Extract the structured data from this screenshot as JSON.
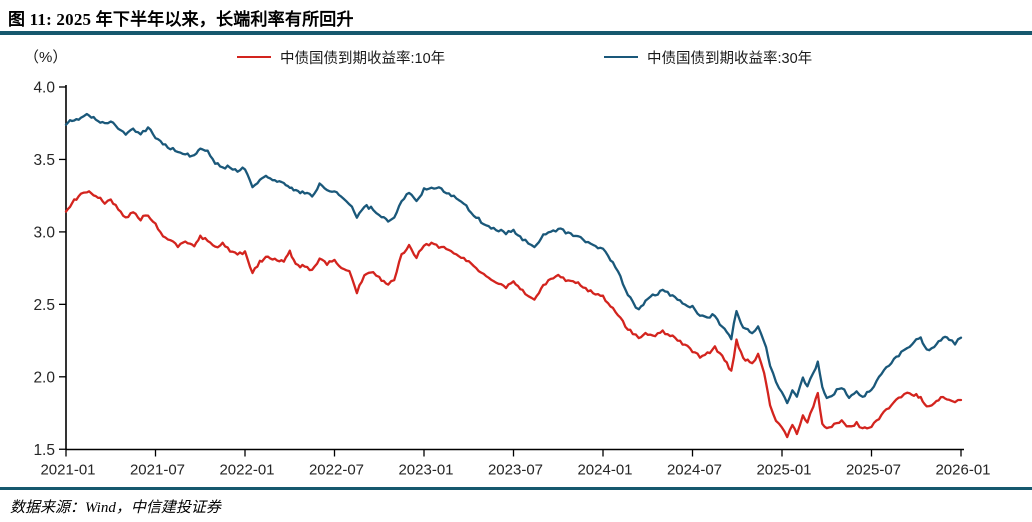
{
  "figure": {
    "title": "图 11: 2025 年下半年以来，长端利率有所回升",
    "unit_label": "（%）",
    "source_note": "数据来源：Wind，中信建投证券"
  },
  "colors": {
    "rule": "#16586E",
    "axis": "#000000",
    "tick_text": "#262626",
    "series_10y": "#D3241E",
    "series_30y": "#1A587A"
  },
  "chart_data": {
    "type": "line",
    "title": "图 11: 2025 年下半年以来，长端利率有所回升",
    "ylabel": "（%）",
    "ylim": [
      1.5,
      4.0
    ],
    "yticks": [
      4.0,
      3.5,
      3.0,
      2.5,
      2.0,
      1.5
    ],
    "xticks": [
      "2021-01",
      "2021-07",
      "2022-01",
      "2022-07",
      "2023-01",
      "2023-07",
      "2024-01",
      "2024-07",
      "2025-01",
      "2025-07",
      "2026-01"
    ],
    "xtick_month_index": [
      0,
      6,
      12,
      18,
      24,
      30,
      36,
      42,
      48,
      54,
      60
    ],
    "grid": false,
    "legend_position": "top",
    "x_months_since_2021_01": [
      0,
      0.4,
      1,
      1.4,
      2,
      2.6,
      3,
      3.5,
      4,
      4.5,
      5,
      5.5,
      6,
      6.5,
      7,
      7.5,
      8,
      8.6,
      9,
      9.5,
      10,
      10.5,
      11,
      11.5,
      12,
      12.5,
      13,
      13.4,
      14,
      14.6,
      15,
      15.4,
      16,
      16.5,
      17,
      17.5,
      18,
      18.6,
      19,
      19.5,
      20,
      20.6,
      21,
      21.6,
      22,
      22.5,
      23,
      23.5,
      24,
      24.5,
      25,
      25.5,
      26,
      26.5,
      27,
      27.5,
      28,
      28.5,
      29,
      29.5,
      30,
      30.6,
      31,
      31.4,
      32,
      32.5,
      33,
      33.5,
      34,
      34.5,
      35,
      35.5,
      36,
      36.5,
      37,
      37.5,
      38,
      38.4,
      39,
      39.5,
      40,
      40.5,
      41,
      41.5,
      42,
      42.5,
      43,
      43.5,
      44,
      44.6,
      44.95,
      45.4,
      46,
      46.4,
      46.8,
      47.2,
      47.6,
      48,
      48.35,
      48.7,
      49,
      49.4,
      49.7,
      50.1,
      50.4,
      50.7,
      51,
      51.5,
      52,
      52.5,
      53,
      53.4,
      54,
      54.5,
      55,
      55.5,
      56,
      56.4,
      57,
      57.3,
      57.7,
      58.2,
      58.8,
      59.2,
      59.6,
      60
    ],
    "series": [
      {
        "name": "中债国债到期收益率:10年",
        "color": "#D3241E",
        "values": [
          3.14,
          3.2,
          3.26,
          3.28,
          3.25,
          3.2,
          3.22,
          3.16,
          3.1,
          3.13,
          3.09,
          3.12,
          3.05,
          2.97,
          2.94,
          2.9,
          2.94,
          2.89,
          2.97,
          2.94,
          2.89,
          2.92,
          2.87,
          2.85,
          2.86,
          2.72,
          2.79,
          2.83,
          2.81,
          2.79,
          2.86,
          2.77,
          2.76,
          2.73,
          2.82,
          2.78,
          2.81,
          2.74,
          2.72,
          2.58,
          2.7,
          2.72,
          2.68,
          2.64,
          2.66,
          2.85,
          2.9,
          2.83,
          2.91,
          2.92,
          2.9,
          2.88,
          2.86,
          2.82,
          2.79,
          2.74,
          2.71,
          2.67,
          2.64,
          2.62,
          2.65,
          2.59,
          2.56,
          2.54,
          2.63,
          2.67,
          2.7,
          2.67,
          2.66,
          2.64,
          2.6,
          2.57,
          2.55,
          2.49,
          2.43,
          2.35,
          2.3,
          2.27,
          2.3,
          2.28,
          2.31,
          2.29,
          2.26,
          2.22,
          2.18,
          2.14,
          2.16,
          2.2,
          2.14,
          2.04,
          2.25,
          2.12,
          2.1,
          2.15,
          2.03,
          1.8,
          1.7,
          1.64,
          1.59,
          1.66,
          1.61,
          1.74,
          1.68,
          1.8,
          1.89,
          1.68,
          1.64,
          1.67,
          1.7,
          1.65,
          1.68,
          1.64,
          1.66,
          1.71,
          1.77,
          1.82,
          1.86,
          1.9,
          1.87,
          1.86,
          1.8,
          1.82,
          1.86,
          1.85,
          1.82,
          1.84
        ]
      },
      {
        "name": "中债国债到期收益率:30年",
        "color": "#1A587A",
        "values": [
          3.74,
          3.77,
          3.79,
          3.81,
          3.78,
          3.74,
          3.76,
          3.72,
          3.68,
          3.71,
          3.68,
          3.72,
          3.65,
          3.6,
          3.58,
          3.55,
          3.54,
          3.52,
          3.58,
          3.55,
          3.48,
          3.44,
          3.45,
          3.42,
          3.44,
          3.3,
          3.35,
          3.39,
          3.36,
          3.33,
          3.31,
          3.28,
          3.27,
          3.25,
          3.33,
          3.29,
          3.28,
          3.22,
          3.2,
          3.1,
          3.18,
          3.16,
          3.12,
          3.08,
          3.1,
          3.22,
          3.27,
          3.21,
          3.29,
          3.31,
          3.3,
          3.27,
          3.25,
          3.21,
          3.16,
          3.1,
          3.06,
          3.03,
          3.01,
          2.99,
          3.01,
          2.95,
          2.92,
          2.9,
          2.98,
          3.0,
          3.02,
          3.0,
          2.98,
          2.96,
          2.92,
          2.9,
          2.88,
          2.81,
          2.73,
          2.6,
          2.51,
          2.46,
          2.54,
          2.57,
          2.59,
          2.57,
          2.54,
          2.5,
          2.48,
          2.43,
          2.41,
          2.43,
          2.34,
          2.27,
          2.45,
          2.34,
          2.31,
          2.34,
          2.25,
          2.08,
          1.96,
          1.89,
          1.81,
          1.91,
          1.86,
          1.99,
          1.94,
          2.03,
          2.1,
          1.92,
          1.85,
          1.89,
          1.93,
          1.86,
          1.9,
          1.86,
          1.92,
          1.99,
          2.06,
          2.12,
          2.17,
          2.2,
          2.25,
          2.27,
          2.18,
          2.21,
          2.27,
          2.26,
          2.23,
          2.27
        ]
      }
    ]
  }
}
